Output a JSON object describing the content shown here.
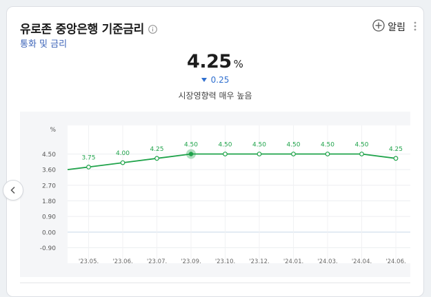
{
  "header": {
    "title": "유로존 중앙은행 기준금리",
    "subtitle": "통화 및 금리",
    "alarm_label": "알림"
  },
  "summary": {
    "value": "4.25",
    "unit": "%",
    "change": "0.25",
    "impact_label": "시장영향력",
    "impact_level": "매우 높음"
  },
  "colors": {
    "line": "#1fa34a",
    "change_down": "#2f6fcf"
  },
  "chart_data": {
    "type": "line",
    "y_unit": "%",
    "yticks": [
      "4.50",
      "3.60",
      "2.70",
      "1.80",
      "0.90",
      "0.00",
      "-0.90"
    ],
    "ylim": [
      -0.9,
      5.0
    ],
    "categories": [
      "'23.05.",
      "'23.06.",
      "'23.07.",
      "'23.09.",
      "'23.10.",
      "'23.12.",
      "'24.01.",
      "'24.03.",
      "'24.04.",
      "'24.06."
    ],
    "lead_in_value": 3.6,
    "series": [
      {
        "values": [
          3.75,
          4.0,
          4.25,
          4.5,
          4.5,
          4.5,
          4.5,
          4.5,
          4.5,
          4.25
        ]
      }
    ],
    "data_labels": [
      "3.75",
      "4.00",
      "4.25",
      "4.50",
      "4.50",
      "4.50",
      "4.50",
      "4.50",
      "4.50",
      "4.25"
    ],
    "highlight_index": 3,
    "grid": true
  }
}
